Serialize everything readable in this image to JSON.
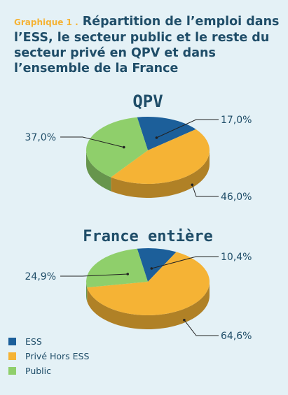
{
  "header": {
    "prefix": "Graphique 1 .",
    "title": "Répartition de l’emploi dans l’ESS, le secteur public et le reste du secteur privé en QPV et dans l’ensemble de la France"
  },
  "colors": {
    "ESS": "#1c5f9a",
    "Privé Hors ESS": "#f5b335",
    "Public": "#8fcf6b"
  },
  "legend": [
    {
      "label": "ESS",
      "color": "#1c5f9a"
    },
    {
      "label": "Privé Hors ESS",
      "color": "#f5b335"
    },
    {
      "label": "Public",
      "color": "#8fcf6b"
    }
  ],
  "chart_data": [
    {
      "type": "pie",
      "title": "QPV",
      "categories": [
        "ESS",
        "Privé Hors ESS",
        "Public"
      ],
      "values": [
        17.0,
        46.0,
        37.0
      ],
      "labels": [
        "17,0%",
        "46,0%",
        "37,0%"
      ]
    },
    {
      "type": "pie",
      "title": "France entière",
      "categories": [
        "ESS",
        "Privé Hors ESS",
        "Public"
      ],
      "values": [
        10.4,
        64.6,
        24.9
      ],
      "labels": [
        "10,4%",
        "64,6%",
        "24,9%"
      ]
    }
  ]
}
